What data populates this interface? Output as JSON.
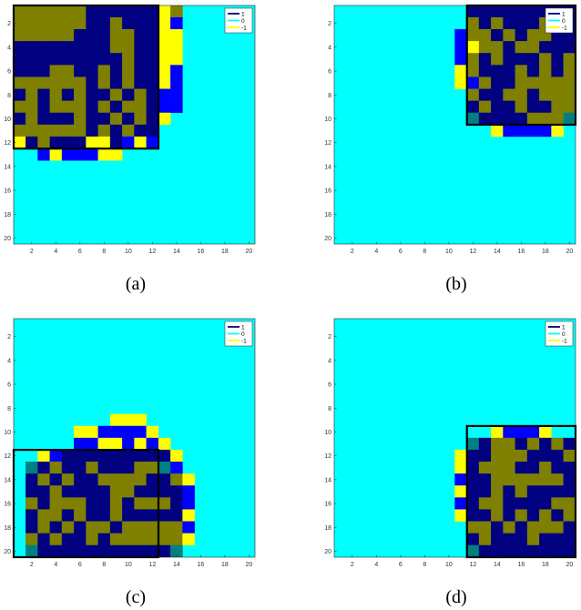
{
  "colors": {
    "value_1": "#000080",
    "value_1_cell": "#0000ff",
    "value_0": "#00ffff",
    "value_neg1": "#ffff00",
    "overlap": "#808000",
    "overlap_edge": "#008080",
    "frame": "#000000"
  },
  "chart_data": [
    {
      "type": "heatmap",
      "caption": "(a)",
      "xticks": [
        2,
        4,
        6,
        8,
        10,
        12,
        14,
        16,
        18,
        20
      ],
      "yticks": [
        2,
        4,
        6,
        8,
        10,
        12,
        14,
        16,
        18,
        20
      ],
      "xlim": [
        1,
        20
      ],
      "ylim": [
        1,
        20
      ],
      "legend": [
        "1",
        "0",
        "-1"
      ],
      "legend_position": "top-right",
      "block": {
        "cols": [
          1,
          12
        ],
        "rows": [
          1,
          12
        ]
      },
      "rows": [
        "GGGGGGNNNNNNYGCCCCCCCC",
        "GGGGGGNNGNNNYBCCCCCCCC",
        "GGGGGNNNGGNNYYCCCCCCCC",
        "NNNNNNNNGGNNYYCCCCCCCC",
        "NNNNNNNNNGNNYYCCCCCCCC",
        "NNNGGNNGNGNNYBCCCCCCCC",
        "GGGGGGNGNGNNYBCCCCCCCC",
        "NGNGNGNNGNGNBBCCCCCCCC",
        "GGNGGGNGNGGNBBCCCCCCCC",
        "NGNNNGNNGNGNYCCCCCCCCC",
        "GGGGGGNGNGNNCCCCCCCCCC",
        "YNGNNNYYNBYBCCCCCCCCCC",
        "CCBYBBBYYCCCCCCCCCCCCC",
        "CCCCCCCCCCCCCCCCCCCCCC",
        "CCCCCCCCCCCCCCCCCCCCCC",
        "CCCCCCCCCCCCCCCCCCCCCC",
        "CCCCCCCCCCCCCCCCCCCCCC",
        "CCCCCCCCCCCCCCCCCCCCCC",
        "CCCCCCCCCCCCCCCCCCCCCC",
        "CCCCCCCCCCCCCCCCCCCCCC"
      ]
    },
    {
      "type": "heatmap",
      "caption": "(b)",
      "xticks": [
        2,
        4,
        6,
        8,
        10,
        12,
        14,
        16,
        18,
        20
      ],
      "yticks": [
        2,
        4,
        6,
        8,
        10,
        12,
        14,
        16,
        18,
        20
      ],
      "xlim": [
        1,
        20
      ],
      "ylim": [
        1,
        20
      ],
      "legend": [
        "1",
        "0",
        "-1"
      ],
      "legend_position": "top-right",
      "block": {
        "cols": [
          12,
          20
        ],
        "rows": [
          1,
          10
        ]
      },
      "rows": [
        "CCCCCCCCCCCNNNNNNNNNN",
        "CCCCCCCCCCCGNGNNNGGNG",
        "CCCCCCCCCCBGGNGNGGNNN",
        "CCCCCCCCCCBYGGNGGNNNN",
        "CCCCCCCCCCBGNGNNNGNGN",
        "CCCCCCCCCCYGNNNGNGNGN",
        "CCCCCCCCCCYBGNNGGGGGG",
        "CCCCCCCCCCCGNNGGNGGGG",
        "CCCCCCCCCCCNGNNGNNGGG",
        "CCCCCCCCCCCDNNNNGGGDD",
        "CCCCCCCCCCCCCYBBBBYCC",
        "CCCCCCCCCCCCCCCCCCCCC",
        "CCCCCCCCCCCCCCCCCCCCC",
        "CCCCCCCCCCCCCCCCCCCCC",
        "CCCCCCCCCCCCCCCCCCCCC",
        "CCCCCCCCCCCCCCCCCCCCC",
        "CCCCCCCCCCCCCCCCCCCCC",
        "CCCCCCCCCCCCCCCCCCCCC",
        "CCCCCCCCCCCCCCCCCCCCC",
        "CCCCCCCCCCCCCCCCCCCCC"
      ]
    },
    {
      "type": "heatmap",
      "caption": "(c)",
      "xticks": [
        2,
        4,
        6,
        8,
        10,
        12,
        14,
        16,
        18,
        20
      ],
      "yticks": [
        2,
        4,
        6,
        8,
        10,
        12,
        14,
        16,
        18,
        20
      ],
      "xlim": [
        1,
        20
      ],
      "ylim": [
        1,
        20
      ],
      "legend": [
        "1",
        "0",
        "-1"
      ],
      "legend_position": "top-right",
      "block": {
        "cols": [
          1,
          12
        ],
        "rows": [
          12,
          20
        ]
      },
      "rows": [
        "CCCCCCCCCCCCCCCCCCCCC",
        "CCCCCCCCCCCCCCCCCCCCC",
        "CCCCCCCCCCCCCCCCCCCCC",
        "CCCCCCCCCCCCCCCCCCCCC",
        "CCCCCCCCCCCCCCCCCCCCC",
        "CCCCCCCCCCCCCCCCCCCCC",
        "CCCCCCCCCCCCCCCCCCCCC",
        "CCCCCCCCCCCCCCCCCCCCC",
        "CCCCCCCCYYYCCCCCCCCCC",
        "CCCCCYYBBBBYCCCCCCCCC",
        "CCCCCBBYYBYBYCCCCCCCC",
        "CCYBNNNNNNNNNYCCCCCCC",
        "CDNGNNGNNNGGDBCCCCCCC",
        "CNGNGNNGGGGNNGYCCCCCC",
        "CNNGNNNNGGNNNNBCCCCCC",
        "CGNGGGNNGNGGGNBCCCCCC",
        "CNGGNGNNGNNNNNYCCCCCC",
        "CNGNGNGGNGGGGGBCCCCCC",
        "CGNGNNGNGGGGGGYCCCCCC",
        "CDNNNNNNNNNNNDCCCCCCC"
      ]
    },
    {
      "type": "heatmap",
      "caption": "(d)",
      "xticks": [
        2,
        4,
        6,
        8,
        10,
        12,
        14,
        16,
        18,
        20
      ],
      "yticks": [
        2,
        4,
        6,
        8,
        10,
        12,
        14,
        16,
        18,
        20
      ],
      "xlim": [
        1,
        20
      ],
      "ylim": [
        1,
        20
      ],
      "legend": [
        "1",
        "0",
        "-1"
      ],
      "legend_position": "top-right",
      "block": {
        "cols": [
          12,
          20
        ],
        "rows": [
          10,
          20
        ]
      },
      "rows": [
        "CCCCCCCCCCCCCCCCCCCCC",
        "CCCCCCCCCCCCCCCCCCCCC",
        "CCCCCCCCCCCCCCCCCCCCC",
        "CCCCCCCCCCCCCCCCCCCCC",
        "CCCCCCCCCCCCCCCCCCCCC",
        "CCCCCCCCCCCCCCCCCCCCC",
        "CCCCCCCCCCCCCCCCCCCCC",
        "CCCCCCCCCCCCCCCCCCCCC",
        "CCCCCCCCCCCCCCCCCCCCC",
        "CCCCCCCCCCCCCYBBBYCCC",
        "CCCCCCCCCCCDNGGNGNGND",
        "CCCCCCCCCCYNNGGGNNNGN",
        "CCCCCCCCCCYNGGGNNGNNG",
        "CCCCCCCCCCBNNGGGGGGNG",
        "CCCCCCCCCCYNNGNGNNNNN",
        "CCCCCCCCCCBNGGNNNNGGG",
        "CCCCCCCCCCYNNGNGNGNGN",
        "CCCCCCCCCCCGGNGNGGGNG",
        "CCCCCCCCCCCNGNNNGNNNN",
        "CCCCCCCCCCCDNNNNNNNND"
      ]
    }
  ]
}
